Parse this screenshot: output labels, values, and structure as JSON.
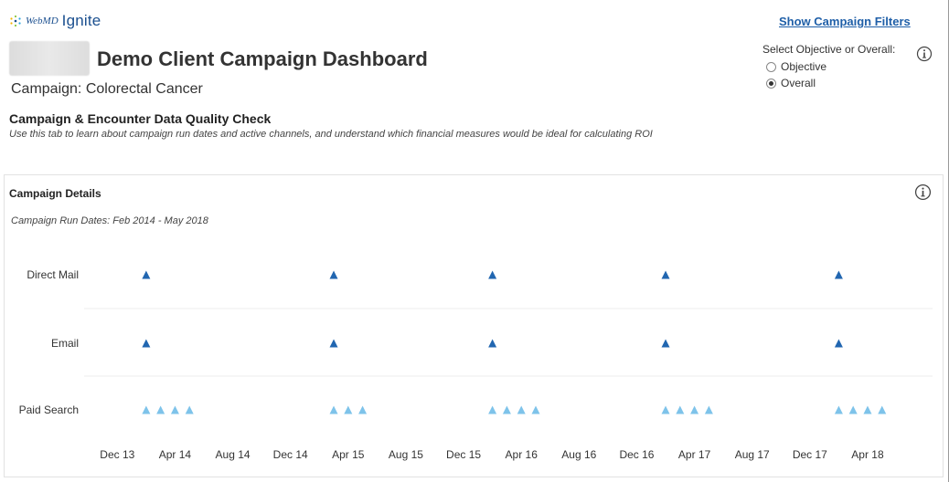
{
  "header": {
    "logo_prefix": "WebMD",
    "logo_name": "Ignite",
    "dashboard_title": "Demo Client Campaign Dashboard",
    "campaign_label": "Campaign: Colorectal Cancer",
    "filters_link": "Show Campaign Filters"
  },
  "objective_selector": {
    "label": "Select Objective or Overall:",
    "options": [
      {
        "label": "Objective",
        "selected": false
      },
      {
        "label": "Overall",
        "selected": true
      }
    ]
  },
  "section": {
    "title": "Campaign & Encounter Data Quality Check",
    "subtitle": "Use this tab to learn about campaign run dates and active channels, and understand which financial measures would be ideal for calculating ROI"
  },
  "panel": {
    "title": "Campaign Details",
    "run_dates": "Campaign Run Dates: Feb 2014 - May 2018"
  },
  "colors": {
    "dark_marker": "#2166b0",
    "light_marker": "#7ec3ea",
    "link": "#1f5fa8"
  },
  "chart_data": {
    "type": "scatter",
    "x_ticks": [
      "Dec 13",
      "Apr 14",
      "Aug 14",
      "Dec 14",
      "Apr 15",
      "Aug 15",
      "Dec 15",
      "Apr 16",
      "Aug 16",
      "Dec 16",
      "Apr 17",
      "Aug 17",
      "Dec 17",
      "Apr 18"
    ],
    "x_tick_months": [
      0,
      4,
      8,
      12,
      16,
      20,
      24,
      28,
      32,
      36,
      40,
      44,
      48,
      52
    ],
    "xlim_months": [
      -2.3,
      56.5
    ],
    "categories": [
      "Direct Mail",
      "Email",
      "Paid Search"
    ],
    "grid": true,
    "series": [
      {
        "category": "Direct Mail",
        "color": "#2166b0",
        "months": [
          2,
          15,
          26,
          38,
          50
        ]
      },
      {
        "category": "Email",
        "color": "#2166b0",
        "months": [
          2,
          15,
          26,
          38,
          50
        ]
      },
      {
        "category": "Paid Search",
        "color": "#7ec3ea",
        "months": [
          2,
          3,
          4,
          5,
          15,
          16,
          17,
          26,
          27,
          28,
          29,
          38,
          39,
          40,
          41,
          50,
          51,
          52,
          53
        ]
      }
    ]
  }
}
